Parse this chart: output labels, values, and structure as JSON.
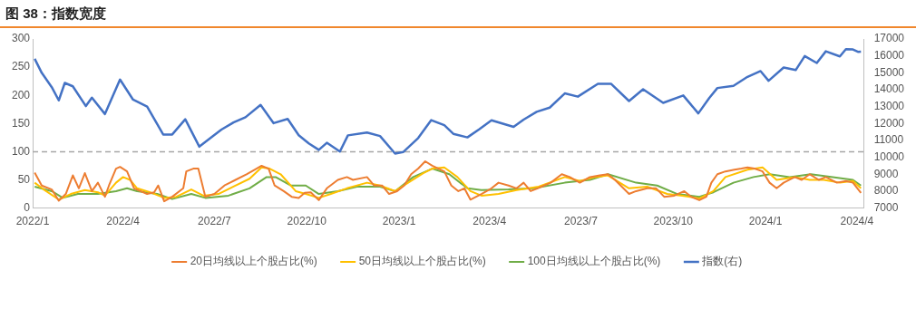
{
  "chart_data": {
    "type": "line",
    "title": "图 38：指数宽度",
    "xlim": [
      "2022-01-01",
      "2024-04-08"
    ],
    "xticks": [
      {
        "value": "2022-01-01",
        "label": "2022/1"
      },
      {
        "value": "2022-04-01",
        "label": "2022/4"
      },
      {
        "value": "2022-07-01",
        "label": "2022/7"
      },
      {
        "value": "2022-10-01",
        "label": "2022/10"
      },
      {
        "value": "2023-01-01",
        "label": "2023/1"
      },
      {
        "value": "2023-04-01",
        "label": "2023/4"
      },
      {
        "value": "2023-07-01",
        "label": "2023/7"
      },
      {
        "value": "2023-10-01",
        "label": "2023/10"
      },
      {
        "value": "2024-01-01",
        "label": "2024/1"
      },
      {
        "value": "2024-04-01",
        "label": "2024/4"
      }
    ],
    "ylim": [
      0,
      300
    ],
    "yticks": [
      0,
      50,
      100,
      150,
      200,
      250,
      300
    ],
    "y2lim": [
      7000,
      17000
    ],
    "y2ticks": [
      7000,
      8000,
      9000,
      10000,
      11000,
      12000,
      13000,
      14000,
      15000,
      16000,
      17000
    ],
    "grid": false,
    "legend": "bottom",
    "marker": "none",
    "line_style": "solid",
    "ref_lines": [
      {
        "axis": "y",
        "value": 100,
        "color": "#a6a6a6",
        "line_style": "dashed"
      }
    ],
    "series": [
      {
        "name": "20日均线以上个股占比(%)",
        "color": "#ed7d31",
        "x": [
          "2022-01-03",
          "2022-01-10",
          "2022-01-20",
          "2022-01-27",
          "2022-02-03",
          "2022-02-10",
          "2022-02-16",
          "2022-02-22",
          "2022-03-01",
          "2022-03-07",
          "2022-03-14",
          "2022-03-18",
          "2022-03-25",
          "2022-03-29",
          "2022-04-05",
          "2022-04-12",
          "2022-04-25",
          "2022-05-02",
          "2022-05-06",
          "2022-05-12",
          "2022-05-20",
          "2022-05-31",
          "2022-06-03",
          "2022-06-10",
          "2022-06-15",
          "2022-06-22",
          "2022-07-01",
          "2022-07-11",
          "2022-07-22",
          "2022-08-02",
          "2022-08-10",
          "2022-08-17",
          "2022-08-24",
          "2022-08-30",
          "2022-09-08",
          "2022-09-16",
          "2022-09-23",
          "2022-09-29",
          "2022-10-05",
          "2022-10-13",
          "2022-10-21",
          "2022-11-01",
          "2022-11-10",
          "2022-11-16",
          "2022-11-30",
          "2022-12-07",
          "2022-12-15",
          "2022-12-22",
          "2022-12-30",
          "2023-01-06",
          "2023-01-13",
          "2023-01-20",
          "2023-01-27",
          "2023-02-03",
          "2023-02-15",
          "2023-02-22",
          "2023-03-01",
          "2023-03-07",
          "2023-03-13",
          "2023-03-24",
          "2023-04-03",
          "2023-04-10",
          "2023-04-20",
          "2023-04-28",
          "2023-05-05",
          "2023-05-12",
          "2023-05-19",
          "2023-06-01",
          "2023-06-12",
          "2023-06-20",
          "2023-06-30",
          "2023-07-10",
          "2023-07-20",
          "2023-07-28",
          "2023-08-04",
          "2023-08-18",
          "2023-08-25",
          "2023-09-05",
          "2023-09-14",
          "2023-09-22",
          "2023-10-02",
          "2023-10-12",
          "2023-10-19",
          "2023-10-27",
          "2023-11-03",
          "2023-11-08",
          "2023-11-14",
          "2023-11-22",
          "2023-12-01",
          "2023-12-08",
          "2023-12-14",
          "2023-12-21",
          "2023-12-29",
          "2024-01-05",
          "2024-01-12",
          "2024-01-19",
          "2024-01-30",
          "2024-02-06",
          "2024-02-14",
          "2024-02-23",
          "2024-03-01",
          "2024-03-12",
          "2024-03-21",
          "2024-03-28",
          "2024-04-05"
        ],
        "values": [
          63,
          40,
          33,
          13,
          25,
          58,
          35,
          62,
          30,
          45,
          20,
          40,
          70,
          73,
          65,
          35,
          25,
          28,
          40,
          12,
          20,
          35,
          65,
          70,
          70,
          20,
          25,
          40,
          50,
          60,
          68,
          75,
          70,
          40,
          30,
          20,
          18,
          27,
          28,
          14,
          35,
          50,
          55,
          50,
          55,
          40,
          40,
          25,
          30,
          40,
          60,
          70,
          83,
          75,
          65,
          40,
          30,
          35,
          15,
          25,
          35,
          45,
          40,
          35,
          45,
          30,
          35,
          45,
          60,
          55,
          45,
          55,
          58,
          60,
          50,
          25,
          30,
          35,
          35,
          20,
          22,
          30,
          20,
          14,
          20,
          45,
          60,
          65,
          68,
          70,
          72,
          70,
          65,
          45,
          35,
          45,
          55,
          50,
          60,
          50,
          55,
          45,
          48,
          45,
          27
        ]
      },
      {
        "name": "50日均线以上个股占比(%)",
        "color": "#ffc000",
        "x": [
          "2022-01-03",
          "2022-01-12",
          "2022-01-27",
          "2022-02-08",
          "2022-02-22",
          "2022-03-07",
          "2022-03-14",
          "2022-03-25",
          "2022-04-01",
          "2022-04-08",
          "2022-04-15",
          "2022-04-28",
          "2022-05-12",
          "2022-05-24",
          "2022-06-08",
          "2022-06-20",
          "2022-07-05",
          "2022-07-20",
          "2022-08-05",
          "2022-08-17",
          "2022-08-25",
          "2022-09-05",
          "2022-09-20",
          "2022-09-30",
          "2022-10-13",
          "2022-10-25",
          "2022-11-10",
          "2022-11-30",
          "2022-12-13",
          "2022-12-28",
          "2023-01-10",
          "2023-01-25",
          "2023-02-03",
          "2023-02-15",
          "2023-02-28",
          "2023-03-13",
          "2023-03-24",
          "2023-04-10",
          "2023-04-28",
          "2023-05-20",
          "2023-06-15",
          "2023-06-30",
          "2023-07-15",
          "2023-07-28",
          "2023-08-18",
          "2023-09-05",
          "2023-09-25",
          "2023-10-10",
          "2023-10-27",
          "2023-11-10",
          "2023-11-22",
          "2023-12-14",
          "2023-12-29",
          "2024-01-12",
          "2024-01-30",
          "2024-02-14",
          "2024-02-28",
          "2024-03-15",
          "2024-03-28",
          "2024-04-05"
        ],
        "values": [
          45,
          33,
          15,
          25,
          32,
          28,
          22,
          45,
          55,
          50,
          35,
          28,
          18,
          20,
          33,
          22,
          25,
          38,
          52,
          72,
          70,
          60,
          30,
          25,
          18,
          25,
          35,
          45,
          40,
          30,
          45,
          62,
          70,
          72,
          55,
          30,
          22,
          25,
          32,
          38,
          55,
          48,
          55,
          58,
          35,
          38,
          25,
          22,
          17,
          30,
          55,
          68,
          72,
          50,
          55,
          50,
          50,
          45,
          48,
          35
        ]
      },
      {
        "name": "100日均线以上个股占比(%)",
        "color": "#70ad47",
        "x": [
          "2022-01-03",
          "2022-01-20",
          "2022-01-31",
          "2022-02-15",
          "2022-03-07",
          "2022-03-25",
          "2022-04-05",
          "2022-04-15",
          "2022-05-05",
          "2022-05-20",
          "2022-06-08",
          "2022-06-22",
          "2022-07-15",
          "2022-08-05",
          "2022-08-22",
          "2022-08-31",
          "2022-09-15",
          "2022-09-30",
          "2022-10-13",
          "2022-11-01",
          "2022-11-20",
          "2022-12-13",
          "2022-12-28",
          "2023-01-15",
          "2023-02-03",
          "2023-02-20",
          "2023-03-10",
          "2023-03-24",
          "2023-04-20",
          "2023-05-15",
          "2023-06-15",
          "2023-07-10",
          "2023-07-28",
          "2023-08-25",
          "2023-09-15",
          "2023-10-05",
          "2023-10-27",
          "2023-11-10",
          "2023-11-30",
          "2023-12-20",
          "2024-01-05",
          "2024-01-25",
          "2024-02-15",
          "2024-03-08",
          "2024-03-28",
          "2024-04-05"
        ],
        "values": [
          38,
          30,
          18,
          25,
          25,
          30,
          35,
          30,
          25,
          16,
          25,
          18,
          22,
          35,
          55,
          55,
          40,
          40,
          25,
          30,
          38,
          38,
          30,
          55,
          70,
          60,
          35,
          32,
          33,
          35,
          45,
          50,
          60,
          45,
          40,
          25,
          20,
          28,
          45,
          55,
          60,
          55,
          60,
          55,
          50,
          40
        ]
      },
      {
        "name": "指数(右)",
        "color": "#4472c4",
        "axis": "y2",
        "x": [
          "2022-01-03",
          "2022-01-10",
          "2022-01-20",
          "2022-01-27",
          "2022-02-02",
          "2022-02-10",
          "2022-02-23",
          "2022-03-01",
          "2022-03-14",
          "2022-03-29",
          "2022-04-11",
          "2022-04-25",
          "2022-05-11",
          "2022-05-20",
          "2022-06-02",
          "2022-06-16",
          "2022-06-28",
          "2022-07-08",
          "2022-07-20",
          "2022-08-01",
          "2022-08-16",
          "2022-08-29",
          "2022-09-12",
          "2022-09-23",
          "2022-10-03",
          "2022-10-13",
          "2022-10-21",
          "2022-11-03",
          "2022-11-11",
          "2022-11-30",
          "2022-12-13",
          "2022-12-28",
          "2023-01-05",
          "2023-01-20",
          "2023-02-02",
          "2023-02-15",
          "2023-02-24",
          "2023-03-10",
          "2023-03-22",
          "2023-04-03",
          "2023-04-25",
          "2023-05-05",
          "2023-05-18",
          "2023-05-31",
          "2023-06-15",
          "2023-06-28",
          "2023-07-18",
          "2023-07-31",
          "2023-08-18",
          "2023-09-01",
          "2023-09-21",
          "2023-10-11",
          "2023-10-26",
          "2023-11-06",
          "2023-11-14",
          "2023-11-30",
          "2023-12-14",
          "2023-12-27",
          "2024-01-04",
          "2024-01-19",
          "2024-01-31",
          "2024-02-09",
          "2024-02-21",
          "2024-03-01",
          "2024-03-15",
          "2024-03-21",
          "2024-03-28",
          "2024-04-02",
          "2024-04-05"
        ],
        "values": [
          15830,
          15000,
          14150,
          13370,
          14400,
          14200,
          13030,
          13530,
          12560,
          14600,
          13410,
          13000,
          11350,
          11350,
          12250,
          10630,
          11180,
          11640,
          12060,
          12370,
          13100,
          12020,
          12270,
          11310,
          10820,
          10440,
          10860,
          10340,
          11300,
          11470,
          11260,
          10220,
          10310,
          11140,
          12200,
          11900,
          11390,
          11180,
          11670,
          12190,
          11800,
          12230,
          12690,
          12940,
          13780,
          13590,
          14350,
          14350,
          13330,
          14030,
          13220,
          13660,
          12600,
          13520,
          14100,
          14230,
          14760,
          15100,
          14530,
          15310,
          15160,
          15990,
          15580,
          16270,
          15970,
          16400,
          16380,
          16240,
          16250
        ]
      }
    ]
  }
}
